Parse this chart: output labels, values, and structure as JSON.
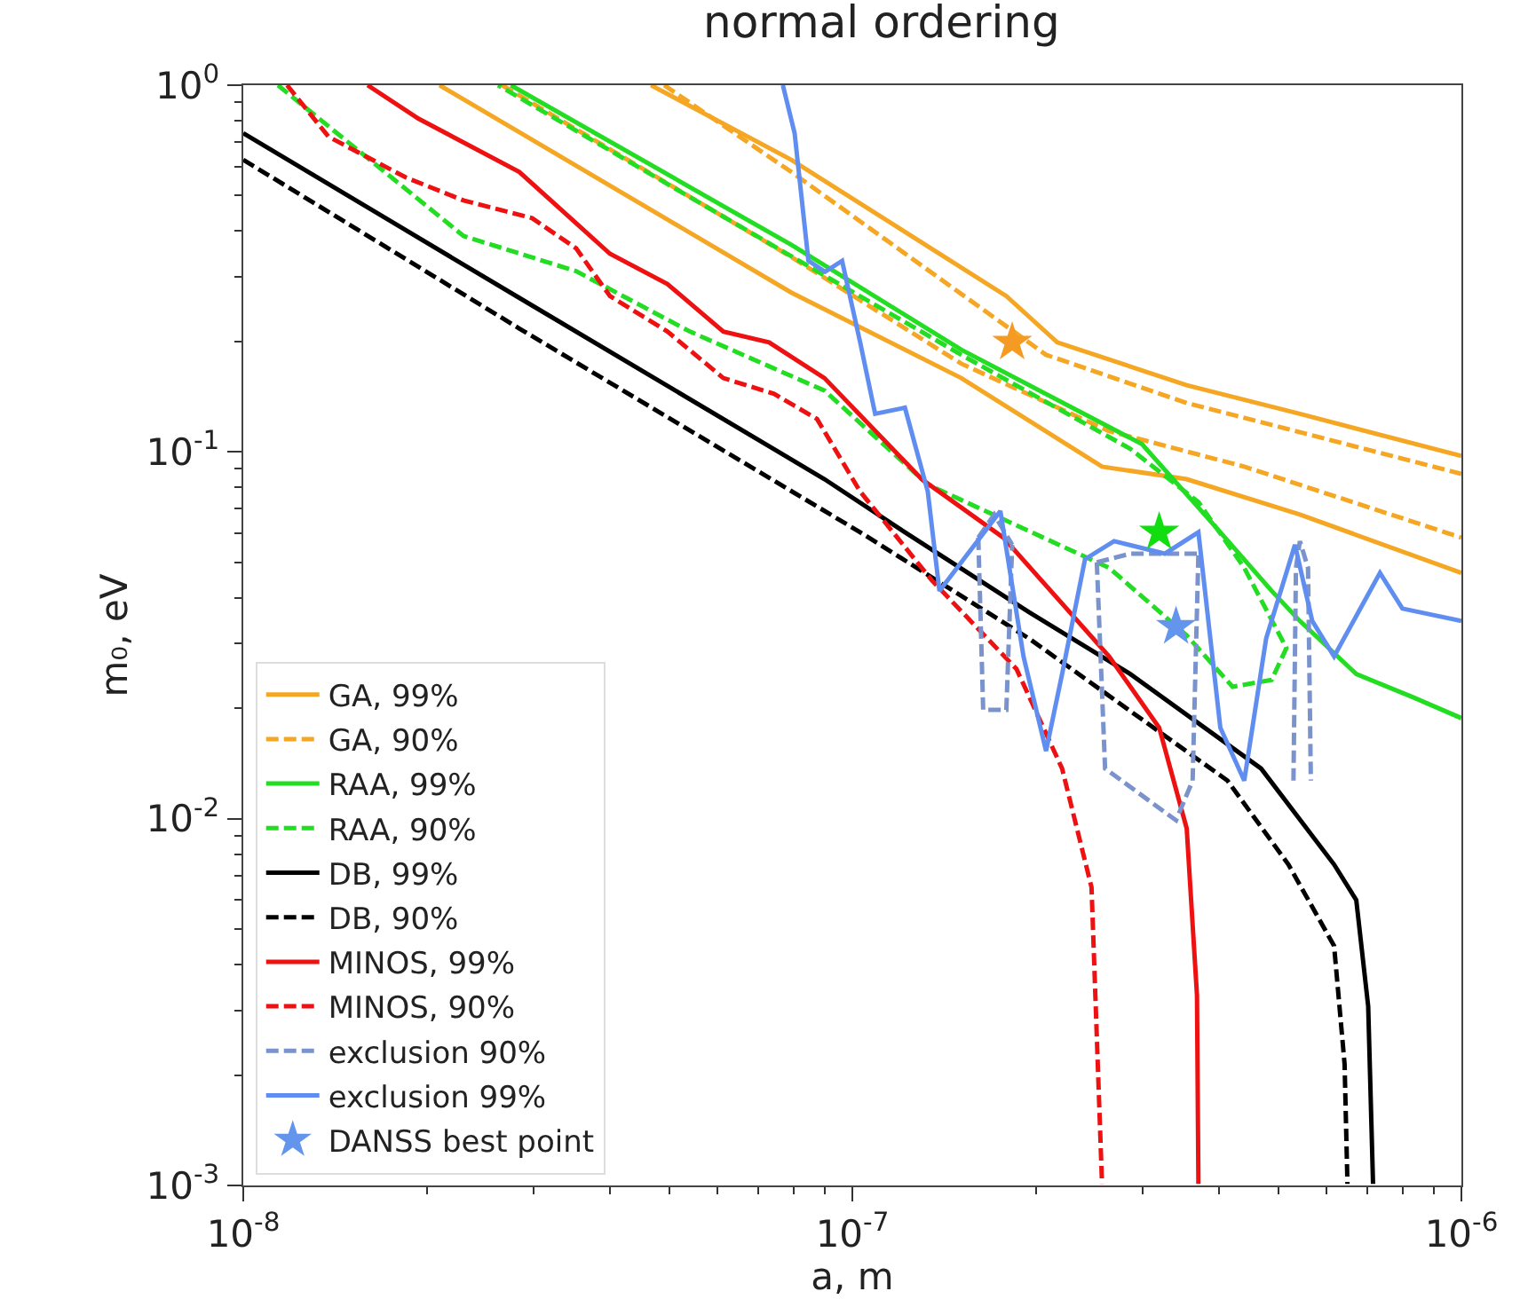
{
  "chart_data": {
    "type": "line",
    "title": "normal ordering",
    "xlabel": "a, m",
    "ylabel": "m₀, eV",
    "log": "xy",
    "grid": false,
    "legend": "bottom left",
    "xlim": [
      1e-08,
      1e-06
    ],
    "ylim": [
      0.001,
      1
    ],
    "xticks": [
      {
        "value": 1e-08,
        "label": "10$^{-8}$"
      },
      {
        "value": 2e-08,
        "label": null
      },
      {
        "value": 3e-08,
        "label": null
      },
      {
        "value": 4e-08,
        "label": null
      },
      {
        "value": 5e-08,
        "label": null
      },
      {
        "value": 6e-08,
        "label": null
      },
      {
        "value": 7e-08,
        "label": null
      },
      {
        "value": 8e-08,
        "label": null
      },
      {
        "value": 9e-08,
        "label": null
      },
      {
        "value": 1e-07,
        "label": "10$^{-7}$"
      },
      {
        "value": 2e-07,
        "label": null
      },
      {
        "value": 3e-07,
        "label": null
      },
      {
        "value": 4e-07,
        "label": null
      },
      {
        "value": 5e-07,
        "label": null
      },
      {
        "value": 6e-07,
        "label": null
      },
      {
        "value": 7e-07,
        "label": null
      },
      {
        "value": 8e-07,
        "label": null
      },
      {
        "value": 9e-07,
        "label": null
      },
      {
        "value": 1e-06,
        "label": "10$^{-6}$"
      }
    ],
    "yticks": [
      {
        "value": 0.001,
        "label": "10$^{-3}$"
      },
      {
        "value": 0.002,
        "label": null
      },
      {
        "value": 0.003,
        "label": null
      },
      {
        "value": 0.004,
        "label": null
      },
      {
        "value": 0.005,
        "label": null
      },
      {
        "value": 0.006,
        "label": null
      },
      {
        "value": 0.007,
        "label": null
      },
      {
        "value": 0.008,
        "label": null
      },
      {
        "value": 0.009,
        "label": null
      },
      {
        "value": 0.01,
        "label": "10$^{-2}$"
      },
      {
        "value": 0.02,
        "label": null
      },
      {
        "value": 0.03,
        "label": null
      },
      {
        "value": 0.04,
        "label": null
      },
      {
        "value": 0.05,
        "label": null
      },
      {
        "value": 0.06,
        "label": null
      },
      {
        "value": 0.07,
        "label": null
      },
      {
        "value": 0.08,
        "label": null
      },
      {
        "value": 0.09,
        "label": null
      },
      {
        "value": 0.1,
        "label": "10$^{-1}$"
      },
      {
        "value": 0.2,
        "label": null
      },
      {
        "value": 0.3,
        "label": null
      },
      {
        "value": 0.4,
        "label": null
      },
      {
        "value": 0.5,
        "label": null
      },
      {
        "value": 0.6,
        "label": null
      },
      {
        "value": 0.7,
        "label": null
      },
      {
        "value": 0.8,
        "label": null
      },
      {
        "value": 0.9,
        "label": null
      },
      {
        "value": 1,
        "label": "10$^{0}$"
      }
    ],
    "series": [
      {
        "name": "GA, 99%",
        "color": "#f5a623",
        "line_style": "solid",
        "marker": "none",
        "x": [
          4.67e-08,
          7.94e-08,
          1.79e-07,
          2.17e-07,
          3.54e-07,
          5.43e-07,
          1e-06,
          null,
          2.1e-08,
          7.94e-08,
          1.51e-07,
          2.57e-07,
          3.54e-07,
          5.43e-07,
          1e-06
        ],
        "values": [
          1.0,
          0.626,
          0.266,
          0.199,
          0.152,
          0.127,
          0.0975,
          null,
          1.0,
          0.272,
          0.159,
          0.0912,
          0.0843,
          0.0675,
          0.0468
        ]
      },
      {
        "name": "GA, 90%",
        "color": "#f5a623",
        "line_style": "dashed",
        "marker": "none",
        "x": [
          4.91e-08,
          7.94e-08,
          2.08e-07,
          3.54e-07,
          1e-06,
          null,
          2.66e-08,
          7.94e-08,
          1.51e-07,
          2.64e-07,
          4.4e-07,
          1e-06
        ],
        "values": [
          1.0,
          0.58,
          0.184,
          0.136,
          0.0871,
          null,
          1.0,
          0.34,
          0.174,
          0.114,
          0.0912,
          0.0584
        ]
      },
      {
        "name": "RAA, 99%",
        "color": "#22dd22",
        "line_style": "solid",
        "marker": "none",
        "x": [
          2.75e-08,
          7.94e-08,
          1.51e-07,
          2.99e-07,
          4.02e-07,
          4.88e-07,
          5.43e-07,
          6.72e-07,
          8.35e-07,
          1e-06
        ],
        "values": [
          1.0,
          0.367,
          0.19,
          0.105,
          0.0604,
          0.0418,
          0.0346,
          0.0248,
          0.0214,
          0.0188
        ]
      },
      {
        "name": "RAA, 90%",
        "color": "#22dd22",
        "line_style": "dashed",
        "marker": "none",
        "x": [
          1.14e-08,
          2.3e-08,
          3.52e-08,
          5.41e-08,
          9e-08,
          1.33e-07,
          2.64e-07,
          3.54e-07,
          4.21e-07,
          4.88e-07,
          5.16e-07,
          4.4e-07,
          3.7e-07,
          2.86e-07,
          1.51e-07,
          8.47e-08,
          2.62e-08
        ],
        "values": [
          1.0,
          0.388,
          0.311,
          0.213,
          0.147,
          0.0815,
          0.0483,
          0.0316,
          0.0229,
          0.0239,
          0.0292,
          0.0483,
          0.073,
          0.102,
          0.184,
          0.321,
          1.0
        ]
      },
      {
        "name": "DB, 99%",
        "color": "#000000",
        "line_style": "solid",
        "marker": "none",
        "x": [
          1e-08,
          2.84e-08,
          9e-08,
          1.22e-07,
          1.95e-07,
          2.86e-07,
          4.69e-07,
          6.18e-07,
          6.72e-07,
          7.03e-07,
          7.16e-07
        ],
        "values": [
          0.74,
          0.263,
          0.0843,
          0.0604,
          0.0366,
          0.0248,
          0.0137,
          0.0075,
          0.006,
          0.00308,
          0.00101
        ]
      },
      {
        "name": "DB, 90%",
        "color": "#000000",
        "line_style": "dashed",
        "marker": "none",
        "x": [
          1e-08,
          2.84e-08,
          1.03e-07,
          1.95e-07,
          4.13e-07,
          5.2e-07,
          6.18e-07,
          6.43e-07,
          6.5e-07
        ],
        "values": [
          0.626,
          0.217,
          0.0604,
          0.031,
          0.0127,
          0.0075,
          0.0045,
          0.00214,
          0.00101
        ]
      },
      {
        "name": "MINOS, 99%",
        "color": "#ee1111",
        "line_style": "solid",
        "marker": "none",
        "x": [
          1.6e-08,
          1.94e-08,
          2.84e-08,
          4e-08,
          4.97e-08,
          6.14e-08,
          7.3e-08,
          9e-08,
          1.3e-07,
          1.77e-07,
          2.64e-07,
          3.19e-07,
          3.54e-07,
          3.68e-07,
          3.7e-07
        ],
        "values": [
          1.0,
          0.81,
          0.58,
          0.347,
          0.287,
          0.213,
          0.199,
          0.159,
          0.0843,
          0.0584,
          0.0277,
          0.0177,
          0.0094,
          0.0033,
          0.00101
        ]
      },
      {
        "name": "MINOS, 90%",
        "color": "#ee1111",
        "line_style": "dashed",
        "marker": "none",
        "x": [
          1.18e-08,
          1.38e-08,
          1.85e-08,
          2.3e-08,
          2.98e-08,
          3.52e-08,
          4e-08,
          4.97e-08,
          6.14e-08,
          7.44e-08,
          8.75e-08,
          1.03e-07,
          1.35e-07,
          1.86e-07,
          2.21e-07,
          2.47e-07,
          2.57e-07
        ],
        "values": [
          1.0,
          0.724,
          0.56,
          0.485,
          0.434,
          0.359,
          0.266,
          0.213,
          0.159,
          0.144,
          0.123,
          0.078,
          0.0447,
          0.0256,
          0.0137,
          0.0065,
          0.00101
        ]
      },
      {
        "name": "exclusion 90%",
        "color": "#7b93cc",
        "line_style": "dashed",
        "marker": "none",
        "x": [
          2.52e-07,
          2.6e-07,
          3.4e-07,
          3.62e-07,
          3.7e-07
        ],
        "values": [
          0.05,
          0.0137,
          0.0099,
          0.0127,
          0.0528
        ]
      },
      {
        "color": "#7b93cc",
        "line_style": "dashed",
        "marker": "none",
        "x": [
          2.52e-07,
          2.86e-07,
          3.7e-07
        ],
        "values": [
          0.05,
          0.0528,
          0.0528
        ]
      },
      {
        "color": "#7b93cc",
        "line_style": "dashed",
        "marker": "none",
        "x": [
          1.61e-07,
          1.64e-07,
          1.79e-07,
          1.83e-07
        ],
        "values": [
          0.0584,
          0.0198,
          0.0198,
          0.0558
        ]
      },
      {
        "color": "#7b93cc",
        "line_style": "dashed",
        "marker": "none",
        "x": [
          1.61e-07,
          1.71e-07,
          1.83e-07
        ],
        "values": [
          0.0584,
          0.0675,
          0.0558
        ]
      },
      {
        "color": "#7b93cc",
        "line_style": "dashed",
        "marker": "none",
        "x": [
          5.3e-07,
          5.35e-07,
          5.43e-07,
          5.6e-07,
          5.66e-07
        ],
        "values": [
          0.0127,
          0.0483,
          0.0571,
          0.0483,
          0.0127
        ]
      },
      {
        "name": "exclusion 99%",
        "color": "#5f8ef0",
        "line_style": "solid",
        "marker": "none",
        "x": [
          7.69e-08,
          8.04e-08,
          8.47e-08,
          9.02e-08,
          9.62e-08,
          1.03e-07,
          1.09e-07,
          1.22e-07,
          1.33e-07,
          1.39e-07,
          1.75e-07,
          1.91e-07,
          2.08e-07,
          2.21e-07,
          2.41e-07,
          2.69e-07,
          3.26e-07,
          3.7e-07,
          4.02e-07,
          4.4e-07,
          4.78e-07,
          5.33e-07,
          5.69e-07,
          6.18e-07,
          7.35e-07,
          8e-07,
          1e-06
        ],
        "values": [
          1.0,
          0.74,
          0.332,
          0.31,
          0.332,
          0.199,
          0.127,
          0.132,
          0.078,
          0.0418,
          0.069,
          0.0277,
          0.0153,
          0.0248,
          0.051,
          0.0571,
          0.0528,
          0.0604,
          0.0177,
          0.0127,
          0.031,
          0.0558,
          0.0346,
          0.0277,
          0.0468,
          0.0374,
          0.0346
        ]
      },
      {
        "name": "DANSS best point",
        "type": "scatter",
        "color": "#6495ed",
        "marker": "star",
        "x": [
          3.4e-07
        ],
        "values": [
          0.0334
        ]
      },
      {
        "type": "scatter",
        "color": "#f59a23",
        "marker": "star",
        "x": [
          1.83e-07
        ],
        "values": [
          0.199
        ]
      },
      {
        "type": "scatter",
        "color": "#11dd11",
        "marker": "star",
        "x": [
          3.19e-07
        ],
        "values": [
          0.0604
        ]
      }
    ]
  }
}
